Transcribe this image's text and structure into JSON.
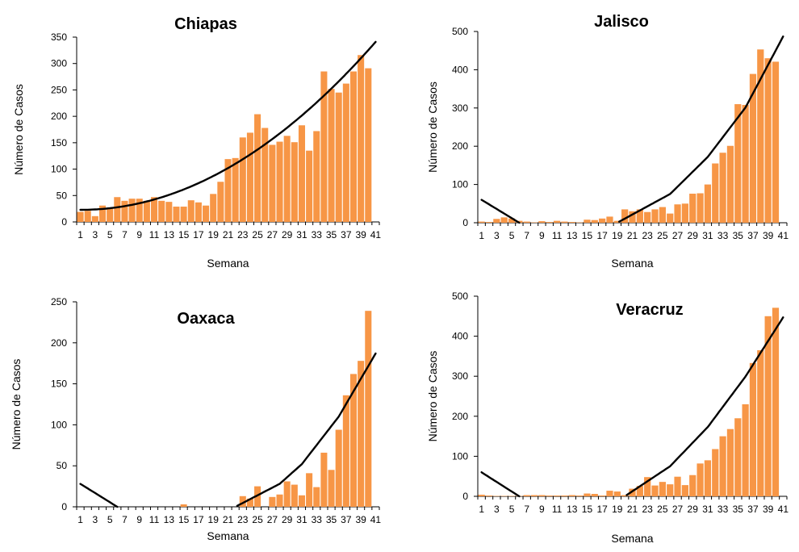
{
  "chart_data": [
    {
      "type": "bar",
      "title": "Chiapas",
      "xlabel": "Semana",
      "ylabel": "Número de Casos",
      "ylim": [
        0,
        350
      ],
      "yticks": [
        0,
        50,
        100,
        150,
        200,
        250,
        300,
        350
      ],
      "categories": [
        "1",
        "2",
        "3",
        "4",
        "5",
        "6",
        "7",
        "8",
        "9",
        "10",
        "11",
        "12",
        "13",
        "14",
        "15",
        "16",
        "17",
        "18",
        "19",
        "20",
        "21",
        "22",
        "23",
        "24",
        "25",
        "26",
        "27",
        "28",
        "29",
        "30",
        "31",
        "32",
        "33",
        "34",
        "35",
        "36",
        "37",
        "38",
        "39",
        "40"
      ],
      "xtick_labels": [
        "1",
        "3",
        "5",
        "7",
        "9",
        "11",
        "13",
        "15",
        "17",
        "19",
        "21",
        "23",
        "25",
        "27",
        "29",
        "31",
        "33",
        "35",
        "37",
        "39",
        "41"
      ],
      "values": [
        19,
        21,
        11,
        31,
        27,
        47,
        40,
        44,
        44,
        40,
        47,
        40,
        38,
        29,
        29,
        41,
        37,
        31,
        53,
        76,
        119,
        121,
        160,
        169,
        204,
        178,
        146,
        152,
        163,
        151,
        183,
        135,
        172,
        285,
        252,
        245,
        262,
        285,
        316,
        291
      ],
      "trend": {
        "type": "polynomial",
        "order": 2,
        "x_range": [
          1,
          41
        ],
        "samples": [
          [
            1,
            23
          ],
          [
            11,
            40
          ],
          [
            21,
            102
          ],
          [
            31,
            203
          ],
          [
            41,
            341
          ]
        ]
      },
      "bar_color": "#F79646",
      "trend_color": "#000000"
    },
    {
      "type": "bar",
      "title": "Jalisco",
      "xlabel": "Semana",
      "ylabel": "Número de Casos",
      "ylim": [
        0,
        500
      ],
      "yticks": [
        0,
        100,
        200,
        300,
        400,
        500
      ],
      "categories": [
        "1",
        "2",
        "3",
        "4",
        "5",
        "6",
        "7",
        "8",
        "9",
        "10",
        "11",
        "12",
        "13",
        "14",
        "15",
        "16",
        "17",
        "18",
        "19",
        "20",
        "21",
        "22",
        "23",
        "24",
        "25",
        "26",
        "27",
        "28",
        "29",
        "30",
        "31",
        "32",
        "33",
        "34",
        "35",
        "36",
        "37",
        "38",
        "39",
        "40"
      ],
      "xtick_labels": [
        "1",
        "3",
        "5",
        "7",
        "9",
        "11",
        "13",
        "15",
        "17",
        "19",
        "21",
        "23",
        "25",
        "27",
        "29",
        "31",
        "33",
        "35",
        "37",
        "39",
        "41"
      ],
      "values": [
        3,
        2,
        10,
        14,
        11,
        5,
        3,
        1,
        4,
        2,
        5,
        3,
        2,
        1,
        8,
        7,
        11,
        16,
        5,
        35,
        30,
        35,
        28,
        35,
        41,
        24,
        48,
        50,
        76,
        77,
        100,
        155,
        183,
        201,
        310,
        308,
        389,
        453,
        430,
        421
      ],
      "trend": {
        "type": "polynomial",
        "order": 2,
        "x_range": [
          1,
          41
        ],
        "samples": [
          [
            1,
            60
          ],
          [
            6,
            0
          ],
          [
            19,
            0
          ],
          [
            26,
            75
          ],
          [
            31,
            172
          ],
          [
            36,
            301
          ],
          [
            41,
            487
          ]
        ]
      },
      "bar_color": "#F79646",
      "trend_color": "#000000"
    },
    {
      "type": "bar",
      "title": "Oaxaca",
      "xlabel": "Semana",
      "ylabel": "Número de Casos",
      "ylim": [
        0,
        250
      ],
      "yticks": [
        0,
        50,
        100,
        150,
        200,
        250
      ],
      "categories": [
        "1",
        "2",
        "3",
        "4",
        "5",
        "6",
        "7",
        "8",
        "9",
        "10",
        "11",
        "12",
        "13",
        "14",
        "15",
        "16",
        "17",
        "18",
        "19",
        "20",
        "21",
        "22",
        "23",
        "24",
        "25",
        "26",
        "27",
        "28",
        "29",
        "30",
        "31",
        "32",
        "33",
        "34",
        "35",
        "36",
        "37",
        "38",
        "39",
        "40"
      ],
      "xtick_labels": [
        "1",
        "3",
        "5",
        "7",
        "9",
        "11",
        "13",
        "15",
        "17",
        "19",
        "21",
        "23",
        "25",
        "27",
        "29",
        "31",
        "33",
        "35",
        "37",
        "39",
        "41"
      ],
      "values": [
        0,
        0,
        0,
        0,
        0,
        0,
        0,
        0,
        0,
        0,
        0,
        0,
        0,
        0,
        3,
        0,
        0,
        0,
        0,
        0,
        0,
        0,
        13,
        10,
        25,
        0,
        12,
        15,
        31,
        27,
        14,
        41,
        24,
        66,
        45,
        94,
        136,
        162,
        178,
        239
      ],
      "trend": {
        "type": "polynomial",
        "order": 2,
        "x_range": [
          1,
          41
        ],
        "samples": [
          [
            1,
            28
          ],
          [
            6,
            0
          ],
          [
            22,
            0
          ],
          [
            28,
            28
          ],
          [
            31,
            52
          ],
          [
            36,
            110
          ],
          [
            41,
            187
          ]
        ]
      },
      "bar_color": "#F79646",
      "trend_color": "#000000"
    },
    {
      "type": "bar",
      "title": "Veracruz",
      "xlabel": "Semana",
      "ylabel": "Número de Casos",
      "ylim": [
        0,
        500
      ],
      "yticks": [
        0,
        100,
        200,
        300,
        400,
        500
      ],
      "categories": [
        "1",
        "2",
        "3",
        "4",
        "5",
        "6",
        "7",
        "8",
        "9",
        "10",
        "11",
        "12",
        "13",
        "14",
        "15",
        "16",
        "17",
        "18",
        "19",
        "20",
        "21",
        "22",
        "23",
        "24",
        "25",
        "26",
        "27",
        "28",
        "29",
        "30",
        "31",
        "32",
        "33",
        "34",
        "35",
        "36",
        "37",
        "38",
        "39",
        "40"
      ],
      "xtick_labels": [
        "1",
        "3",
        "5",
        "7",
        "9",
        "11",
        "13",
        "15",
        "17",
        "19",
        "21",
        "23",
        "25",
        "27",
        "29",
        "31",
        "33",
        "35",
        "37",
        "39",
        "41"
      ],
      "values": [
        4,
        2,
        1,
        1,
        1,
        1,
        3,
        3,
        3,
        2,
        2,
        2,
        3,
        2,
        7,
        6,
        2,
        14,
        12,
        3,
        19,
        26,
        48,
        27,
        36,
        30,
        49,
        28,
        53,
        82,
        90,
        118,
        150,
        168,
        195,
        230,
        333,
        365,
        450,
        471
      ],
      "trend": {
        "type": "polynomial",
        "order": 2,
        "x_range": [
          1,
          41
        ],
        "samples": [
          [
            1,
            60
          ],
          [
            6,
            0
          ],
          [
            20,
            0
          ],
          [
            26,
            75
          ],
          [
            31,
            173
          ],
          [
            36,
            299
          ],
          [
            41,
            447
          ]
        ]
      },
      "bar_color": "#F79646",
      "trend_color": "#000000"
    }
  ]
}
